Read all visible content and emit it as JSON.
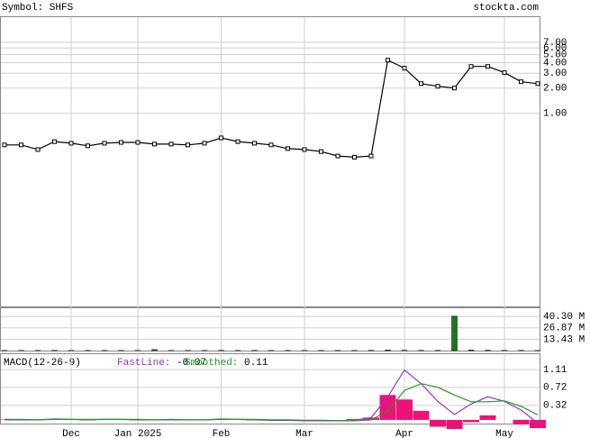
{
  "chart_data": [
    {
      "type": "line",
      "title": "Symbol: SHFS",
      "annotation": "stockta.com",
      "log_scale": true,
      "grid": true,
      "color": "#000000",
      "categories": [
        null,
        null,
        null,
        null,
        "Dec",
        null,
        null,
        null,
        "Jan 2025",
        null,
        null,
        null,
        null,
        "Feb",
        null,
        null,
        null,
        null,
        "Mar",
        null,
        null,
        null,
        null,
        null,
        "Apr",
        null,
        null,
        null,
        null,
        null,
        "May",
        null,
        null
      ],
      "values": [
        0.42,
        0.42,
        0.37,
        0.46,
        0.44,
        0.41,
        0.44,
        0.45,
        0.45,
        0.43,
        0.43,
        0.42,
        0.44,
        0.51,
        0.46,
        0.44,
        0.42,
        0.38,
        0.37,
        0.35,
        0.31,
        0.3,
        0.31,
        4.3,
        3.45,
        2.26,
        2.1,
        2.0,
        3.62,
        3.62,
        3.05,
        2.38,
        2.26
      ],
      "ylim": [
        0.005,
        14
      ],
      "yticks": [
        {
          "value": 1,
          "label": "1.00"
        },
        {
          "value": 2,
          "label": "2.00"
        },
        {
          "value": 3,
          "label": "3.00"
        },
        {
          "value": 4,
          "label": "4.00"
        },
        {
          "value": 5,
          "label": "5.00"
        },
        {
          "value": 6,
          "label": "6.00"
        },
        {
          "value": 7,
          "label": "7.00"
        }
      ]
    },
    {
      "type": "bar",
      "color": "#1a7a1a",
      "grid": true,
      "values": [
        0.2,
        0.2,
        0.2,
        0.3,
        0.2,
        0.2,
        0.2,
        0.2,
        0.2,
        1.2,
        0.2,
        0.2,
        0.2,
        0.3,
        0.2,
        0.2,
        0.2,
        0.2,
        0.2,
        0.2,
        0.2,
        0.2,
        0.3,
        0.6,
        0.4,
        0.3,
        0.3,
        40.6,
        0.6,
        0.4,
        0.3,
        0.3,
        0.2
      ],
      "ylim": [
        0,
        50
      ],
      "yticks": [
        {
          "value": 13.43,
          "label": "13.43 M"
        },
        {
          "value": 26.87,
          "label": "26.87 M"
        },
        {
          "value": 40.3,
          "label": "40.30 M"
        }
      ]
    },
    {
      "type": "macd",
      "title": "MACD(12-26-9)",
      "grid": true,
      "series": [
        {
          "name": "FastLine:",
          "color": "#9933cc",
          "last": -0.07,
          "values": [
            0.01,
            0.01,
            0.0,
            0.02,
            0.01,
            0.0,
            0.01,
            0.01,
            0.0,
            0.0,
            0.01,
            0.0,
            0.0,
            0.02,
            0.01,
            0.0,
            -0.01,
            -0.01,
            -0.02,
            -0.02,
            -0.02,
            -0.01,
            0.05,
            0.51,
            1.1,
            0.8,
            0.41,
            0.12,
            0.35,
            0.51,
            0.41,
            0.22,
            -0.07
          ]
        },
        {
          "name": "Smoothed:",
          "color": "#229922",
          "last": 0.11,
          "values": [
            0.0,
            0.0,
            0.0,
            0.01,
            0.01,
            0.01,
            0.01,
            0.01,
            0.01,
            0.0,
            0.0,
            0.0,
            0.0,
            0.01,
            0.01,
            0.01,
            0.0,
            0.0,
            -0.01,
            -0.01,
            -0.02,
            -0.02,
            0.0,
            0.2,
            0.65,
            0.8,
            0.72,
            0.55,
            0.4,
            0.4,
            0.42,
            0.3,
            0.11
          ]
        }
      ],
      "histogram": {
        "color": "#ee1177",
        "values": [
          0.01,
          0.01,
          0.0,
          0.01,
          0.0,
          -0.01,
          0.0,
          0.0,
          -0.01,
          0.0,
          0.01,
          0.0,
          0.0,
          0.01,
          0.0,
          -0.01,
          -0.01,
          -0.01,
          -0.01,
          -0.01,
          0.0,
          0.02,
          0.05,
          0.55,
          0.45,
          0.2,
          -0.15,
          -0.2,
          -0.05,
          0.1,
          0.0,
          -0.1,
          -0.18
        ]
      },
      "ylim": [
        -0.22,
        1.45
      ],
      "yticks": [
        0.32,
        0.72,
        1.11
      ]
    }
  ]
}
